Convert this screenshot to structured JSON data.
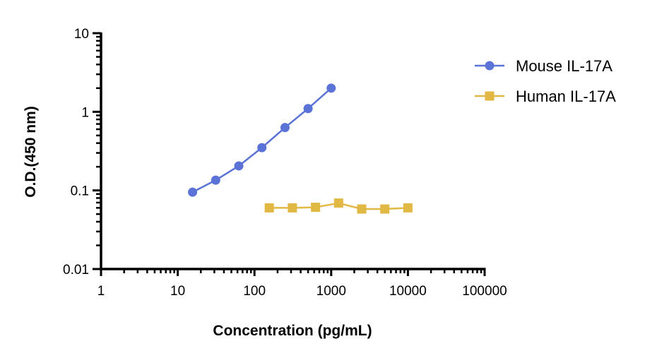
{
  "chart_data": {
    "type": "line",
    "title": "",
    "xlabel": "Concentration (pg/mL)",
    "ylabel": "O.D.(450 nm)",
    "xscale": "log",
    "yscale": "log",
    "xlim": [
      1,
      100000
    ],
    "ylim": [
      0.01,
      10
    ],
    "xticks": [
      {
        "value": 1,
        "label": "1"
      },
      {
        "value": 10,
        "label": "10"
      },
      {
        "value": 100,
        "label": "100"
      },
      {
        "value": 1000,
        "label": "1000"
      },
      {
        "value": 10000,
        "label": "10000"
      },
      {
        "value": 100000,
        "label": "100000"
      }
    ],
    "yticks": [
      {
        "value": 0.01,
        "label": "0.01"
      },
      {
        "value": 0.1,
        "label": "0.1"
      },
      {
        "value": 1,
        "label": "1"
      },
      {
        "value": 10,
        "label": "10"
      }
    ],
    "grid": false,
    "legend_position": "top-right",
    "series": [
      {
        "name": "Mouse IL-17A",
        "color": "#5b73d6",
        "marker": "circle",
        "x": [
          15.6,
          31.25,
          62.5,
          125,
          250,
          500,
          1000
        ],
        "y": [
          0.095,
          0.135,
          0.205,
          0.35,
          0.63,
          1.1,
          2.0
        ]
      },
      {
        "name": "Human IL-17A",
        "color": "#e2b845",
        "marker": "square",
        "x": [
          156,
          312,
          625,
          1250,
          2500,
          5000,
          10000
        ],
        "y": [
          0.06,
          0.06,
          0.061,
          0.069,
          0.058,
          0.058,
          0.06
        ]
      }
    ]
  }
}
